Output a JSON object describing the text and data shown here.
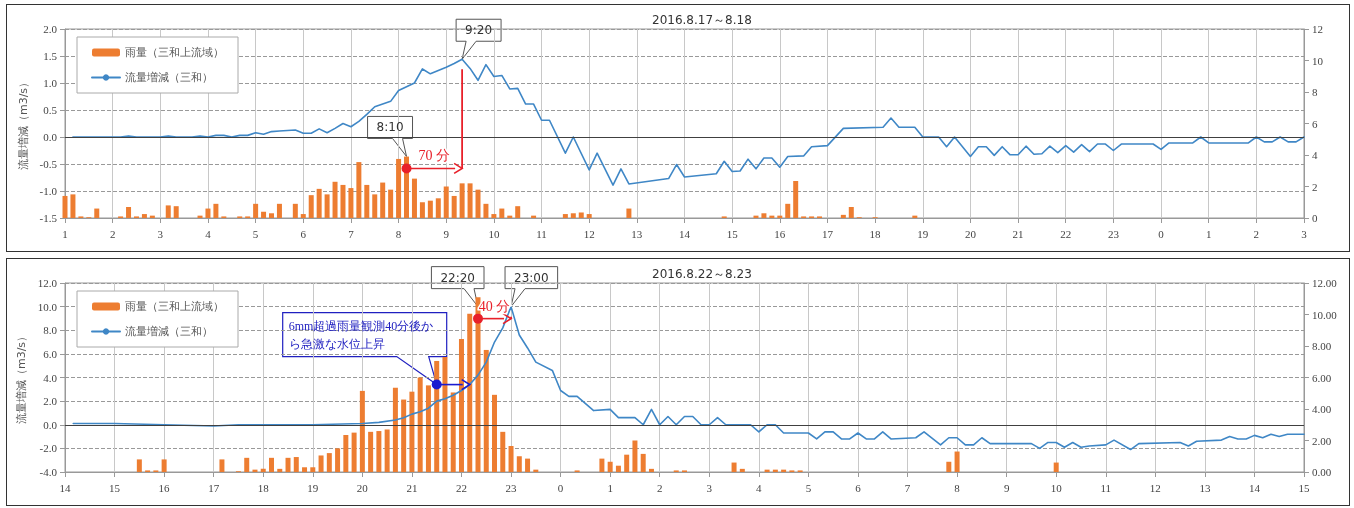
{
  "chart_data": [
    {
      "type": "bar",
      "title": "2016.8.17～8.18",
      "ylabel": "流量増減（m3/s）",
      "legend": "top left",
      "grid": true,
      "marker": "none",
      "line_style": "solid",
      "xlim": [
        "2016-08-17T01:00",
        "2016-08-18T03:00"
      ],
      "xticks": [
        {
          "value": "2016-08-17T01:00",
          "label": "1"
        },
        {
          "value": "2016-08-17T02:00",
          "label": "2"
        },
        {
          "value": "2016-08-17T03:00",
          "label": "3"
        },
        {
          "value": "2016-08-17T04:00",
          "label": "4"
        },
        {
          "value": "2016-08-17T05:00",
          "label": "5"
        },
        {
          "value": "2016-08-17T06:00",
          "label": "6"
        },
        {
          "value": "2016-08-17T07:00",
          "label": "7"
        },
        {
          "value": "2016-08-17T08:00",
          "label": "8"
        },
        {
          "value": "2016-08-17T09:00",
          "label": "9"
        },
        {
          "value": "2016-08-17T10:00",
          "label": "10"
        },
        {
          "value": "2016-08-17T11:00",
          "label": "11"
        },
        {
          "value": "2016-08-17T12:00",
          "label": "12"
        },
        {
          "value": "2016-08-17T13:00",
          "label": "13"
        },
        {
          "value": "2016-08-17T14:00",
          "label": "14"
        },
        {
          "value": "2016-08-17T15:00",
          "label": "15"
        },
        {
          "value": "2016-08-17T16:00",
          "label": "16"
        },
        {
          "value": "2016-08-17T17:00",
          "label": "17"
        },
        {
          "value": "2016-08-17T18:00",
          "label": "18"
        },
        {
          "value": "2016-08-17T19:00",
          "label": "19"
        },
        {
          "value": "2016-08-17T20:00",
          "label": "20"
        },
        {
          "value": "2016-08-17T21:00",
          "label": "21"
        },
        {
          "value": "2016-08-17T22:00",
          "label": "22"
        },
        {
          "value": "2016-08-17T23:00",
          "label": "23"
        },
        {
          "value": "2016-08-18T00:00",
          "label": "0"
        },
        {
          "value": "2016-08-18T01:00",
          "label": "1"
        },
        {
          "value": "2016-08-18T02:00",
          "label": "2"
        },
        {
          "value": "2016-08-18T03:00",
          "label": "3"
        }
      ],
      "ylim": [
        -1.5,
        2
      ],
      "yticks": [
        -1.5,
        {
          "value": -1,
          "label": "-1.0"
        },
        -0.5,
        {
          "value": 0,
          "label": "0.0"
        },
        0.5,
        {
          "value": 1,
          "label": "1.0"
        },
        1.5,
        {
          "value": 2,
          "label": "2.0"
        }
      ],
      "y2lim": [
        0,
        12
      ],
      "y2ticks": [
        0,
        2,
        4,
        6,
        8,
        10,
        12
      ],
      "ref_lines": [
        {
          "axis": "y",
          "value": 0,
          "color": "#404040"
        }
      ],
      "annotations": [
        {
          "text": "9:20",
          "x": "2016-08-17T09:20",
          "y": 1.44
        },
        {
          "text": "8:10",
          "x": "2016-08-17T08:10",
          "y": -0.36
        },
        "70 分"
      ],
      "series": [
        {
          "name": "雨量（三和上流域）",
          "type": "bar",
          "axis": "y2",
          "color": "#ed7d31",
          "x": [
            "2016-08-17T01:00",
            "2016-08-17T01:10",
            "2016-08-17T01:20",
            "2016-08-17T01:30",
            "2016-08-17T01:40",
            "2016-08-17T02:10",
            "2016-08-17T02:20",
            "2016-08-17T02:30",
            "2016-08-17T02:40",
            "2016-08-17T02:50",
            "2016-08-17T03:10",
            "2016-08-17T03:20",
            "2016-08-17T03:50",
            "2016-08-17T04:00",
            "2016-08-17T04:10",
            "2016-08-17T04:20",
            "2016-08-17T04:40",
            "2016-08-17T04:50",
            "2016-08-17T05:00",
            "2016-08-17T05:10",
            "2016-08-17T05:20",
            "2016-08-17T05:30",
            "2016-08-17T05:50",
            "2016-08-17T06:00",
            "2016-08-17T06:10",
            "2016-08-17T06:20",
            "2016-08-17T06:30",
            "2016-08-17T06:40",
            "2016-08-17T06:50",
            "2016-08-17T07:00",
            "2016-08-17T07:10",
            "2016-08-17T07:20",
            "2016-08-17T07:30",
            "2016-08-17T07:40",
            "2016-08-17T07:50",
            "2016-08-17T08:00",
            "2016-08-17T08:10",
            "2016-08-17T08:20",
            "2016-08-17T08:30",
            "2016-08-17T08:40",
            "2016-08-17T08:50",
            "2016-08-17T09:00",
            "2016-08-17T09:10",
            "2016-08-17T09:20",
            "2016-08-17T09:30",
            "2016-08-17T09:40",
            "2016-08-17T09:50",
            "2016-08-17T10:00",
            "2016-08-17T10:10",
            "2016-08-17T10:20",
            "2016-08-17T10:30",
            "2016-08-17T10:50",
            "2016-08-17T11:30",
            "2016-08-17T11:40",
            "2016-08-17T11:50",
            "2016-08-17T12:00",
            "2016-08-17T12:50",
            "2016-08-17T14:50",
            "2016-08-17T15:30",
            "2016-08-17T15:40",
            "2016-08-17T15:50",
            "2016-08-17T16:00",
            "2016-08-17T16:10",
            "2016-08-17T16:20",
            "2016-08-17T16:30",
            "2016-08-17T16:40",
            "2016-08-17T16:50",
            "2016-08-17T17:20",
            "2016-08-17T17:30",
            "2016-08-17T17:40",
            "2016-08-17T18:00",
            "2016-08-17T18:50"
          ],
          "values": [
            1.4,
            1.5,
            0.1,
            0.05,
            0.6,
            0.1,
            0.7,
            0.1,
            0.25,
            0.15,
            0.8,
            0.75,
            0.15,
            0.6,
            0.9,
            0.1,
            0.1,
            0.1,
            0.9,
            0.4,
            0.3,
            0.9,
            0.9,
            0.25,
            1.45,
            1.85,
            1.5,
            2.3,
            2.1,
            1.9,
            3.55,
            2.1,
            1.5,
            2.25,
            1.8,
            3.75,
            3.9,
            2.5,
            1,
            1.1,
            1.25,
            2,
            1.4,
            2.2,
            2.2,
            1.8,
            0.9,
            0.25,
            0.6,
            0.15,
            0.75,
            0.15,
            0.25,
            0.3,
            0.35,
            0.25,
            0.6,
            0.1,
            0.15,
            0.3,
            0.15,
            0.15,
            0.9,
            2.35,
            0.1,
            0.1,
            0.1,
            0.2,
            0.7,
            0.05,
            0.05,
            0.15
          ]
        },
        {
          "name": "流量増減（三和）",
          "type": "line",
          "color": "#3f87c6",
          "x": [
            "2016-08-17T01:10",
            "2016-08-17T02:10",
            "2016-08-17T02:20",
            "2016-08-17T02:30",
            "2016-08-17T03:00",
            "2016-08-17T03:10",
            "2016-08-17T03:20",
            "2016-08-17T03:40",
            "2016-08-17T03:50",
            "2016-08-17T04:00",
            "2016-08-17T04:10",
            "2016-08-17T04:20",
            "2016-08-17T04:30",
            "2016-08-17T04:40",
            "2016-08-17T04:50",
            "2016-08-17T05:00",
            "2016-08-17T05:10",
            "2016-08-17T05:20",
            "2016-08-17T05:30",
            "2016-08-17T05:40",
            "2016-08-17T05:50",
            "2016-08-17T06:00",
            "2016-08-17T06:10",
            "2016-08-17T06:20",
            "2016-08-17T06:30",
            "2016-08-17T06:40",
            "2016-08-17T06:50",
            "2016-08-17T07:00",
            "2016-08-17T07:10",
            "2016-08-17T07:20",
            "2016-08-17T07:30",
            "2016-08-17T07:40",
            "2016-08-17T07:50",
            "2016-08-17T08:00",
            "2016-08-17T08:10",
            "2016-08-17T08:20",
            "2016-08-17T08:30",
            "2016-08-17T08:40",
            "2016-08-17T08:50",
            "2016-08-17T09:00",
            "2016-08-17T09:10",
            "2016-08-17T09:20",
            "2016-08-17T09:30",
            "2016-08-17T09:40",
            "2016-08-17T09:50",
            "2016-08-17T10:00",
            "2016-08-17T10:10",
            "2016-08-17T10:20",
            "2016-08-17T10:30",
            "2016-08-17T10:40",
            "2016-08-17T10:50",
            "2016-08-17T11:00",
            "2016-08-17T11:10",
            "2016-08-17T11:30",
            "2016-08-17T11:40",
            "2016-08-17T12:00",
            "2016-08-17T12:10",
            "2016-08-17T12:30",
            "2016-08-17T12:40",
            "2016-08-17T12:50",
            "2016-08-17T13:40",
            "2016-08-17T13:50",
            "2016-08-17T14:00",
            "2016-08-17T14:40",
            "2016-08-17T14:50",
            "2016-08-17T15:00",
            "2016-08-17T15:10",
            "2016-08-17T15:20",
            "2016-08-17T15:30",
            "2016-08-17T15:40",
            "2016-08-17T15:50",
            "2016-08-17T16:00",
            "2016-08-17T16:10",
            "2016-08-17T16:30",
            "2016-08-17T16:40",
            "2016-08-17T17:00",
            "2016-08-17T17:20",
            "2016-08-17T18:10",
            "2016-08-17T18:20",
            "2016-08-17T18:30",
            "2016-08-17T18:50",
            "2016-08-17T19:00",
            "2016-08-17T19:20",
            "2016-08-17T19:30",
            "2016-08-17T19:40",
            "2016-08-17T20:00",
            "2016-08-17T20:10",
            "2016-08-17T20:20",
            "2016-08-17T20:30",
            "2016-08-17T20:40",
            "2016-08-17T20:50",
            "2016-08-17T21:00",
            "2016-08-17T21:10",
            "2016-08-17T21:20",
            "2016-08-17T21:30",
            "2016-08-17T21:40",
            "2016-08-17T21:50",
            "2016-08-17T22:00",
            "2016-08-17T22:10",
            "2016-08-17T22:20",
            "2016-08-17T22:30",
            "2016-08-17T22:40",
            "2016-08-17T22:50",
            "2016-08-17T23:00",
            "2016-08-17T23:10",
            "2016-08-17T23:20",
            "2016-08-17T23:50",
            "2016-08-18T00:00",
            "2016-08-18T00:10",
            "2016-08-18T00:40",
            "2016-08-18T00:50",
            "2016-08-18T01:00",
            "2016-08-18T01:50",
            "2016-08-18T02:00",
            "2016-08-18T02:10",
            "2016-08-18T02:20",
            "2016-08-18T02:30",
            "2016-08-18T02:40",
            "2016-08-18T02:50",
            "2016-08-18T03:00"
          ],
          "values": [
            0,
            0,
            0.02,
            0,
            0,
            0.02,
            0,
            0,
            0.02,
            0,
            0.03,
            0.03,
            0,
            0.03,
            0.03,
            0.08,
            0.05,
            0.1,
            0.11,
            0.12,
            0.13,
            0.07,
            0.07,
            0.15,
            0.08,
            0.16,
            0.25,
            0.19,
            0.29,
            0.42,
            0.56,
            0.61,
            0.66,
            0.86,
            0.93,
            1,
            1.26,
            1.17,
            1.23,
            1.29,
            1.36,
            1.44,
            1.27,
            1.05,
            1.34,
            1.12,
            1.14,
            0.89,
            0.9,
            0.61,
            0.61,
            0.31,
            0.31,
            -0.3,
            0,
            -0.61,
            -0.3,
            -0.89,
            -0.59,
            -0.87,
            -0.77,
            -0.51,
            -0.74,
            -0.68,
            -0.45,
            -0.64,
            -0.63,
            -0.41,
            -0.59,
            -0.39,
            -0.39,
            -0.56,
            -0.36,
            -0.35,
            -0.18,
            -0.16,
            0.16,
            0.18,
            0.35,
            0.18,
            0.18,
            0,
            0,
            -0.18,
            0,
            -0.36,
            -0.18,
            -0.18,
            -0.34,
            -0.18,
            -0.33,
            -0.33,
            -0.17,
            -0.32,
            -0.31,
            -0.17,
            -0.29,
            -0.16,
            -0.28,
            -0.14,
            -0.27,
            -0.13,
            -0.13,
            -0.25,
            -0.13,
            -0.13,
            -0.13,
            -0.23,
            -0.11,
            -0.11,
            0,
            -0.11,
            -0.11,
            0,
            -0.09,
            -0.09,
            0,
            -0.09,
            -0.09,
            0
          ]
        }
      ]
    },
    {
      "type": "bar",
      "title": "2016.8.22～8.23",
      "ylabel": "流量増減（m3/s）",
      "legend": "top left",
      "grid": true,
      "marker": "none",
      "line_style": "solid",
      "xlim": [
        "2016-08-22T14:00",
        "2016-08-23T15:00"
      ],
      "xticks": [
        {
          "value": "2016-08-22T14:00",
          "label": "14"
        },
        {
          "value": "2016-08-22T15:00",
          "label": "15"
        },
        {
          "value": "2016-08-22T16:00",
          "label": "16"
        },
        {
          "value": "2016-08-22T17:00",
          "label": "17"
        },
        {
          "value": "2016-08-22T18:00",
          "label": "18"
        },
        {
          "value": "2016-08-22T19:00",
          "label": "19"
        },
        {
          "value": "2016-08-22T20:00",
          "label": "20"
        },
        {
          "value": "2016-08-22T21:00",
          "label": "21"
        },
        {
          "value": "2016-08-22T22:00",
          "label": "22"
        },
        {
          "value": "2016-08-22T23:00",
          "label": "23"
        },
        {
          "value": "2016-08-23T00:00",
          "label": "0"
        },
        {
          "value": "2016-08-23T01:00",
          "label": "1"
        },
        {
          "value": "2016-08-23T02:00",
          "label": "2"
        },
        {
          "value": "2016-08-23T03:00",
          "label": "3"
        },
        {
          "value": "2016-08-23T04:00",
          "label": "4"
        },
        {
          "value": "2016-08-23T05:00",
          "label": "5"
        },
        {
          "value": "2016-08-23T06:00",
          "label": "6"
        },
        {
          "value": "2016-08-23T07:00",
          "label": "7"
        },
        {
          "value": "2016-08-23T08:00",
          "label": "8"
        },
        {
          "value": "2016-08-23T09:00",
          "label": "9"
        },
        {
          "value": "2016-08-23T10:00",
          "label": "10"
        },
        {
          "value": "2016-08-23T11:00",
          "label": "11"
        },
        {
          "value": "2016-08-23T12:00",
          "label": "12"
        },
        {
          "value": "2016-08-23T13:00",
          "label": "13"
        },
        {
          "value": "2016-08-23T14:00",
          "label": "14"
        },
        {
          "value": "2016-08-23T15:00",
          "label": "15"
        }
      ],
      "ylim": [
        -4,
        12
      ],
      "yticks": [
        {
          "value": -4,
          "label": "-4.0"
        },
        {
          "value": -2,
          "label": "-2.0"
        },
        {
          "value": 0,
          "label": "0.0"
        },
        {
          "value": 2,
          "label": "2.0"
        },
        {
          "value": 4,
          "label": "4.0"
        },
        {
          "value": 6,
          "label": "6.0"
        },
        {
          "value": 8,
          "label": "8.0"
        },
        {
          "value": 10,
          "label": "10.0"
        },
        {
          "value": 12,
          "label": "12.0"
        }
      ],
      "y2lim": [
        0,
        12
      ],
      "y2ticks": [
        {
          "value": 0,
          "label": "0.00"
        },
        {
          "value": 2,
          "label": "2.00"
        },
        {
          "value": 4,
          "label": "4.00"
        },
        {
          "value": 6,
          "label": "6.00"
        },
        {
          "value": 8,
          "label": "8.00"
        },
        {
          "value": 10,
          "label": "10.00"
        },
        {
          "value": 12,
          "label": "12.00"
        }
      ],
      "ref_lines": [
        {
          "axis": "y",
          "value": 0,
          "color": "#404040"
        }
      ],
      "annotations": [
        {
          "text": "22:20",
          "x": "2016-08-22T22:20",
          "y": 10
        },
        {
          "text": "23:00",
          "x": "2016-08-22T23:00",
          "y": 10
        },
        "40 分",
        {
          "text": "6mm超過雨量観測40分後から急激な水位上昇",
          "x": "2016-08-22T21:30",
          "y": 3.4
        }
      ],
      "series": [
        {
          "name": "雨量（三和上流域）",
          "type": "bar",
          "axis": "y2",
          "color": "#ed7d31",
          "x": [
            "2016-08-22T15:30",
            "2016-08-22T15:40",
            "2016-08-22T15:50",
            "2016-08-22T16:00",
            "2016-08-22T17:10",
            "2016-08-22T17:30",
            "2016-08-22T17:40",
            "2016-08-22T17:50",
            "2016-08-22T18:00",
            "2016-08-22T18:10",
            "2016-08-22T18:20",
            "2016-08-22T18:30",
            "2016-08-22T18:40",
            "2016-08-22T18:50",
            "2016-08-22T19:00",
            "2016-08-22T19:10",
            "2016-08-22T19:20",
            "2016-08-22T19:30",
            "2016-08-22T19:40",
            "2016-08-22T19:50",
            "2016-08-22T20:00",
            "2016-08-22T20:10",
            "2016-08-22T20:20",
            "2016-08-22T20:30",
            "2016-08-22T20:40",
            "2016-08-22T20:50",
            "2016-08-22T21:00",
            "2016-08-22T21:10",
            "2016-08-22T21:20",
            "2016-08-22T21:30",
            "2016-08-22T21:40",
            "2016-08-22T21:50",
            "2016-08-22T22:00",
            "2016-08-22T22:10",
            "2016-08-22T22:20",
            "2016-08-22T22:30",
            "2016-08-22T22:40",
            "2016-08-22T22:50",
            "2016-08-22T23:00",
            "2016-08-22T23:10",
            "2016-08-22T23:20",
            "2016-08-22T23:30",
            "2016-08-23T00:20",
            "2016-08-23T00:50",
            "2016-08-23T01:00",
            "2016-08-23T01:10",
            "2016-08-23T01:20",
            "2016-08-23T01:30",
            "2016-08-23T01:40",
            "2016-08-23T01:50",
            "2016-08-23T02:20",
            "2016-08-23T02:30",
            "2016-08-23T03:30",
            "2016-08-23T03:40",
            "2016-08-23T04:10",
            "2016-08-23T04:20",
            "2016-08-23T04:30",
            "2016-08-23T04:40",
            "2016-08-23T04:50",
            "2016-08-23T07:50",
            "2016-08-23T08:00",
            "2016-08-23T10:00"
          ],
          "values": [
            0.8,
            0.1,
            0.1,
            0.8,
            0.8,
            0.05,
            0.9,
            0.15,
            0.2,
            0.9,
            0.2,
            0.9,
            0.95,
            0.3,
            0.3,
            1.05,
            1.2,
            1.5,
            2.35,
            2.5,
            5.15,
            2.55,
            2.6,
            2.7,
            5.35,
            4.6,
            5.1,
            6,
            5.5,
            7.05,
            7.3,
            5.05,
            8.45,
            10.05,
            11.1,
            7.75,
            4.9,
            2.55,
            1.65,
            1,
            0.85,
            0.15,
            0.1,
            0.85,
            0.65,
            0.4,
            1.1,
            2,
            1.15,
            0.2,
            0.1,
            0.1,
            0.6,
            0.2,
            0.15,
            0.15,
            0.15,
            0.1,
            0.1,
            0.65,
            1.3,
            0.6
          ]
        },
        {
          "name": "流量増減（三和）",
          "type": "line",
          "color": "#3f87c6",
          "x": [
            "2016-08-22T14:10",
            "2016-08-22T15:00",
            "2016-08-22T16:00",
            "2016-08-22T17:00",
            "2016-08-22T17:30",
            "2016-08-22T19:00",
            "2016-08-22T20:00",
            "2016-08-22T20:20",
            "2016-08-22T20:40",
            "2016-08-22T20:50",
            "2016-08-22T21:00",
            "2016-08-22T21:10",
            "2016-08-22T21:20",
            "2016-08-22T21:30",
            "2016-08-22T21:40",
            "2016-08-22T21:50",
            "2016-08-22T22:00",
            "2016-08-22T22:10",
            "2016-08-22T22:20",
            "2016-08-22T22:30",
            "2016-08-22T22:40",
            "2016-08-22T22:50",
            "2016-08-22T23:00",
            "2016-08-22T23:10",
            "2016-08-22T23:20",
            "2016-08-22T23:30",
            "2016-08-22T23:50",
            "2016-08-23T00:00",
            "2016-08-23T00:10",
            "2016-08-23T00:20",
            "2016-08-23T00:40",
            "2016-08-23T01:00",
            "2016-08-23T01:10",
            "2016-08-23T01:30",
            "2016-08-23T01:40",
            "2016-08-23T01:50",
            "2016-08-23T02:00",
            "2016-08-23T02:10",
            "2016-08-23T02:20",
            "2016-08-23T02:30",
            "2016-08-23T02:40",
            "2016-08-23T02:50",
            "2016-08-23T03:00",
            "2016-08-23T03:10",
            "2016-08-23T03:20",
            "2016-08-23T03:50",
            "2016-08-23T04:00",
            "2016-08-23T04:10",
            "2016-08-23T04:20",
            "2016-08-23T04:30",
            "2016-08-23T05:00",
            "2016-08-23T05:10",
            "2016-08-23T05:20",
            "2016-08-23T05:30",
            "2016-08-23T05:40",
            "2016-08-23T05:50",
            "2016-08-23T06:00",
            "2016-08-23T06:10",
            "2016-08-23T06:20",
            "2016-08-23T06:30",
            "2016-08-23T06:40",
            "2016-08-23T07:10",
            "2016-08-23T07:20",
            "2016-08-23T07:40",
            "2016-08-23T07:50",
            "2016-08-23T08:00",
            "2016-08-23T08:10",
            "2016-08-23T08:20",
            "2016-08-23T08:30",
            "2016-08-23T08:40",
            "2016-08-23T09:30",
            "2016-08-23T09:40",
            "2016-08-23T09:50",
            "2016-08-23T10:00",
            "2016-08-23T10:10",
            "2016-08-23T10:20",
            "2016-08-23T10:30",
            "2016-08-23T10:40",
            "2016-08-23T11:00",
            "2016-08-23T11:10",
            "2016-08-23T11:30",
            "2016-08-23T11:40",
            "2016-08-23T12:30",
            "2016-08-23T12:40",
            "2016-08-23T12:50",
            "2016-08-23T13:20",
            "2016-08-23T13:30",
            "2016-08-23T13:40",
            "2016-08-23T13:50",
            "2016-08-23T14:00",
            "2016-08-23T14:10",
            "2016-08-23T14:20",
            "2016-08-23T14:30",
            "2016-08-23T14:40",
            "2016-08-23T15:00"
          ],
          "values": [
            0.1,
            0.1,
            0,
            -0.1,
            0,
            0,
            0.1,
            0.2,
            0.4,
            0.6,
            0.9,
            1.1,
            1.4,
            2,
            2.2,
            2.5,
            2.9,
            3.4,
            4.2,
            5.3,
            7,
            8.2,
            10,
            7.6,
            6.5,
            5.3,
            4.6,
            2.9,
            2.4,
            2.4,
            1.2,
            1.3,
            0.6,
            0.6,
            0,
            1.3,
            0,
            0.7,
            0,
            0.7,
            0.7,
            0,
            0,
            0.6,
            0,
            0,
            -0.6,
            0,
            0,
            -0.7,
            -0.7,
            -1.2,
            -0.6,
            -0.6,
            -1.2,
            -1.2,
            -0.7,
            -1.2,
            -1.2,
            -0.6,
            -1.2,
            -1.1,
            -0.6,
            -1.7,
            -1.1,
            -1.1,
            -1.7,
            -1.7,
            -1.1,
            -1.6,
            -1.6,
            -2,
            -1.5,
            -1.5,
            -1.9,
            -1.5,
            -1.9,
            -1.8,
            -1.7,
            -1.3,
            -2.1,
            -1.6,
            -1.5,
            -1.8,
            -1.4,
            -1.3,
            -1,
            -1.2,
            -1.2,
            -0.9,
            -1.1,
            -0.8,
            -1,
            -0.8,
            -0.8
          ]
        }
      ]
    }
  ]
}
